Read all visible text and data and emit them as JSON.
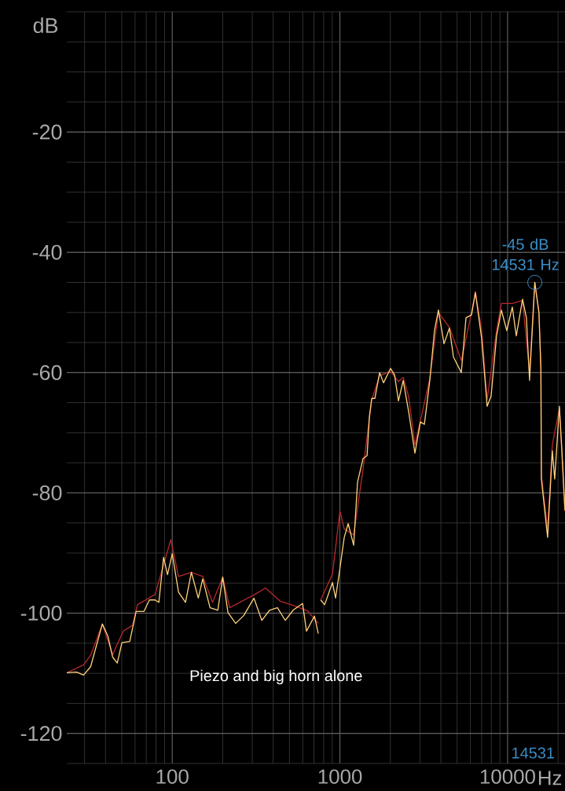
{
  "chart_data": {
    "type": "line",
    "xlabel": "Hz",
    "ylabel": "dB",
    "log": "x",
    "grid": true,
    "xlim": [
      23.5,
      22000
    ],
    "ylim": [
      -125,
      0
    ],
    "xticks": [
      100,
      1000,
      10000
    ],
    "yticks": [
      -120,
      -100,
      -80,
      -60,
      -40,
      -20
    ],
    "series": [
      {
        "color": "#b8282f",
        "x": [
          23.5,
          29.6,
          32.6,
          38.3,
          44.1,
          51,
          58,
          62,
          79,
          98,
          109,
          130,
          152,
          174,
          200,
          220,
          310,
          360,
          440,
          526,
          640,
          743,
          755,
          768,
          903,
          1000,
          1061,
          1208,
          1374,
          1548,
          1725,
          2005,
          2234,
          2384,
          2570,
          2801,
          3020,
          3436,
          3869,
          4500,
          5297,
          6092,
          6425,
          7003,
          7551,
          8596,
          9181,
          10670,
          12280,
          13520,
          14531,
          15380,
          15800,
          15900,
          17330,
          18490,
          20370,
          21980
        ],
        "values": [
          -109.9,
          -108.6,
          -107,
          -101.8,
          -106.9,
          -103,
          -102,
          -98.6,
          -96.9,
          -87.8,
          -93.9,
          -93.2,
          -93.9,
          -98.2,
          -94.0,
          -99.1,
          -96.9,
          -95.8,
          -98.0,
          -98.7,
          -99.6,
          -101.7,
          null,
          -97.8,
          -93.5,
          -83,
          -86,
          -87,
          -76,
          -64.5,
          -60.5,
          -59.8,
          -61.5,
          -60.8,
          -64,
          -72,
          -68,
          -61,
          -50,
          -52.5,
          -58,
          -50,
          -46.5,
          -53,
          -64.5,
          -53,
          -48.5,
          -48.5,
          -48,
          -60,
          -45,
          -50,
          -59,
          -77,
          -86,
          -72,
          -66,
          -83
        ]
      },
      {
        "color": "#ffd27a",
        "x": [
          23.5,
          26.9,
          29.6,
          32.6,
          38.3,
          41.3,
          44.1,
          47.0,
          50.1,
          55.8,
          60.9,
          67.8,
          73.1,
          78.9,
          83.2,
          88.8,
          93.7,
          100,
          109,
          120,
          130,
          143,
          152,
          168,
          187,
          200,
          215,
          239,
          267,
          307,
          342,
          381,
          424,
          472,
          526,
          599,
          632,
          705,
          743,
          755,
          768,
          811,
          903,
          942,
          995,
          1061,
          1120,
          1208,
          1274,
          1374,
          1452,
          1499,
          1548,
          1615,
          1725,
          1820,
          2005,
          2118,
          2234,
          2384,
          2570,
          2801,
          3020,
          3190,
          3436,
          3666,
          3869,
          4177,
          4500,
          4753,
          5297,
          5649,
          6092,
          6425,
          7003,
          7551,
          7974,
          8596,
          9181,
          9886,
          10670,
          11270,
          12280,
          12950,
          13520,
          14531,
          15380,
          15800,
          15900,
          17330,
          18490,
          19100,
          20370,
          21040,
          21980
        ],
        "values": [
          -109.9,
          -109.8,
          -110.3,
          -108.9,
          -101.8,
          -103.8,
          -107.3,
          -108.3,
          -104.9,
          -104.7,
          -99.7,
          -99.7,
          -97.8,
          -97.8,
          -98.2,
          -90.7,
          -93.6,
          -90.1,
          -96.5,
          -98.2,
          -93.2,
          -97.5,
          -94.3,
          -99.1,
          -99.5,
          -94.0,
          -99.9,
          -101.7,
          -100.4,
          -97.5,
          -101.2,
          -99.5,
          -99.1,
          -101.2,
          -99.5,
          -98.4,
          -103.0,
          -100.5,
          -103.4,
          null,
          -97.8,
          -98.6,
          -94.9,
          -97.5,
          -93.0,
          -87.4,
          -85.1,
          -88.7,
          -78.2,
          -74.3,
          -73.8,
          -67.3,
          -64.3,
          -64.3,
          -60.0,
          -61.7,
          -59.3,
          -60.4,
          -64.7,
          -61.3,
          -66.5,
          -73.4,
          -68.2,
          -68.6,
          -61.3,
          -53.0,
          -49.6,
          -55.2,
          -52.6,
          -57.4,
          -60.0,
          -50.9,
          -50.4,
          -46.7,
          -54.3,
          -65.6,
          -63.9,
          -53.9,
          -49.6,
          -53.0,
          -49.1,
          -53.9,
          -47.8,
          -50.9,
          -61.3,
          -45,
          -50.0,
          -59.5,
          -77.7,
          -87.4,
          -73.0,
          -77.7,
          -65.6,
          -72.5,
          -82.9
        ]
      }
    ],
    "annotations": [
      {
        "text": "-45 dB 14531 Hz",
        "x": 14531,
        "y": -45
      },
      "14531",
      "Piezo and big horn alone"
    ]
  }
}
